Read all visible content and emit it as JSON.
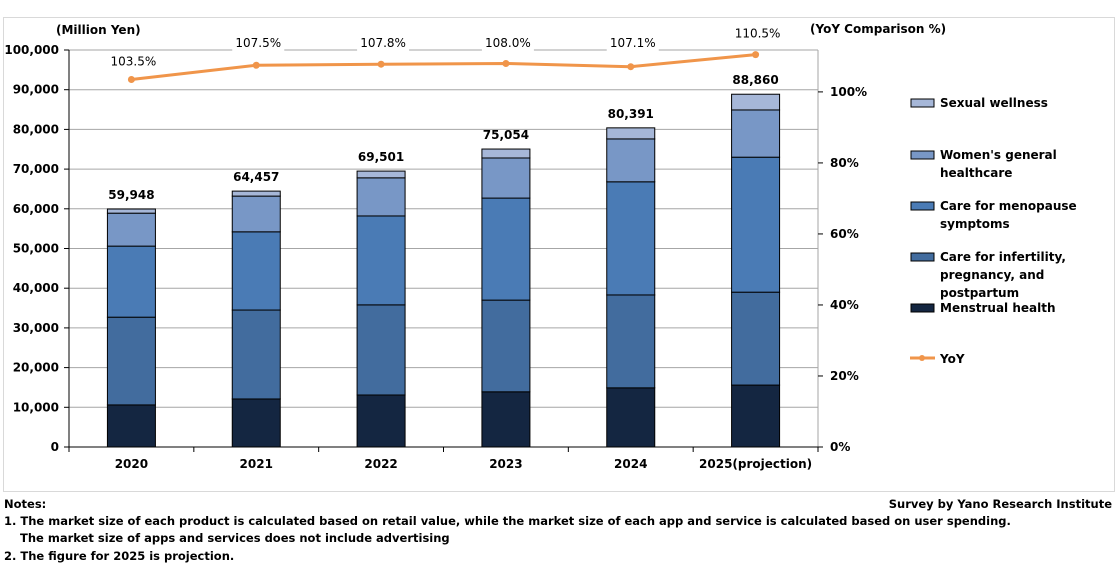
{
  "chart_data": {
    "type": "bar",
    "stacked": true,
    "categories": [
      "2020",
      "2021",
      "2022",
      "2023",
      "2024",
      "2025(projection)"
    ],
    "left_axis_label": "(Million Yen)",
    "right_axis_label": "(YoY Comparison %)",
    "ylim": [
      0,
      100000
    ],
    "yticks": [
      "0",
      "10,000",
      "20,000",
      "30,000",
      "40,000",
      "50,000",
      "60,000",
      "70,000",
      "80,000",
      "90,000",
      "100,000"
    ],
    "y2ticks": [
      "0%",
      "20%",
      "40%",
      "60%",
      "80%",
      "100%"
    ],
    "y2lim": [
      0,
      111.8
    ],
    "grid": true,
    "legend_position": "right",
    "series": [
      {
        "name": "Menstrual health",
        "color": "#142641",
        "values": [
          10600,
          12100,
          13100,
          13900,
          14900,
          15600
        ]
      },
      {
        "name": "Care for infertility, pregnancy, and postpartum",
        "color": "#426c9e",
        "values": [
          22100,
          22400,
          22700,
          23100,
          23400,
          23400
        ]
      },
      {
        "name": "Care for menopause symptoms",
        "color": "#4a7bb5",
        "values": [
          17900,
          19700,
          22400,
          25700,
          28500,
          34000
        ]
      },
      {
        "name": "Women's general healthcare",
        "color": "#7897c6",
        "values": [
          8300,
          9000,
          9600,
          10100,
          10800,
          11900
        ]
      },
      {
        "name": "Sexual wellness",
        "color": "#a6b7d8",
        "values": [
          1048,
          1257,
          1701,
          2254,
          2791,
          3960
        ]
      }
    ],
    "totals": [
      "59,948",
      "64,457",
      "69,501",
      "75,054",
      "80,391",
      "88,860"
    ],
    "total_values": [
      59948,
      64457,
      69501,
      75054,
      80391,
      88860
    ],
    "line": {
      "name": "YoY",
      "color": "#f0954a",
      "values": [
        103.5,
        107.5,
        107.8,
        108.0,
        107.1,
        110.5
      ],
      "labels": [
        "103.5%",
        "107.5%",
        "107.8%",
        "108.0%",
        "107.1%",
        "110.5%"
      ]
    }
  },
  "source": "Survey by Yano Research Institute",
  "notes": {
    "title": "Notes:",
    "lines": [
      "1. The market size of each product is calculated based on retail value, while the market size of each app and service is calculated based on user spending.",
      "    The market size of apps and services does not include advertising",
      "2. The figure for 2025 is projection."
    ]
  }
}
